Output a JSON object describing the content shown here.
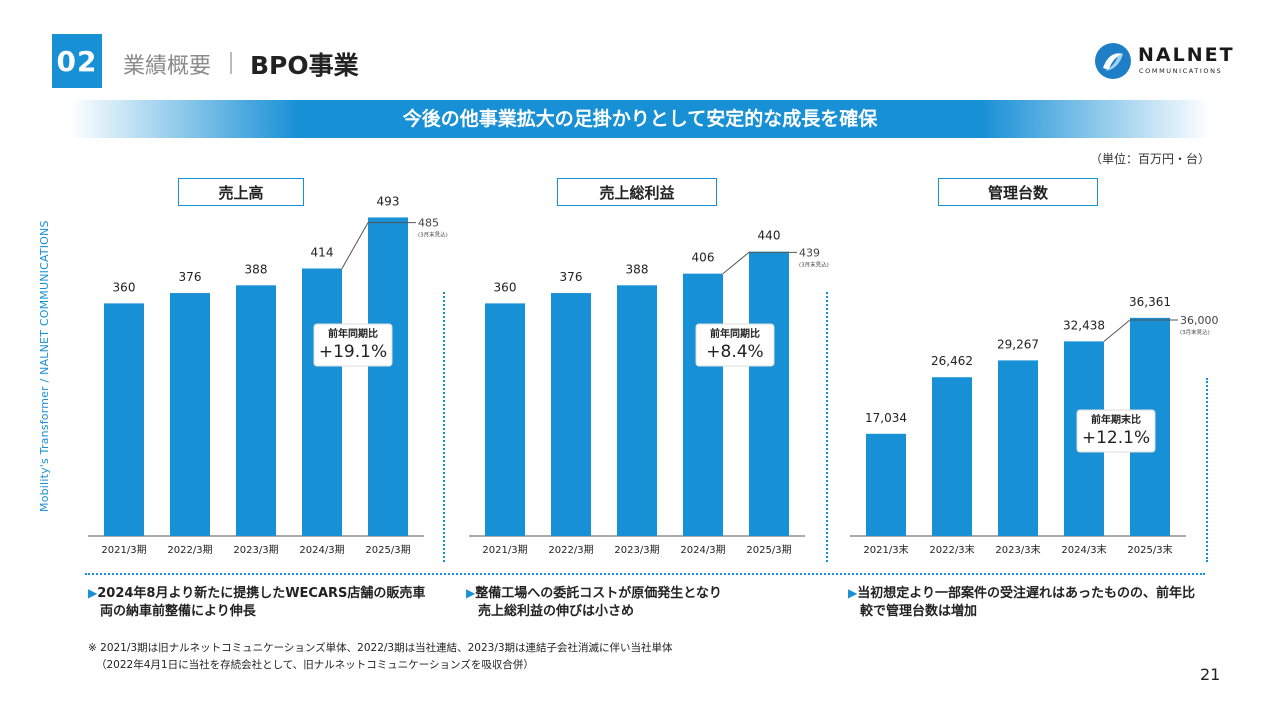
{
  "header": {
    "section_number": "02",
    "category": "業績概要",
    "title": "BPO事業",
    "logo_name": "NALNET",
    "logo_sub": "COMMUNICATIONS"
  },
  "banner": "今後の他事業拡大の足掛かりとして安定的な成長を確保",
  "unit": "（単位：百万円・台）",
  "side_text": "Mobility's Transformer / NALNET COMMUNICATIONS",
  "notes": [
    {
      "line1": "2024年8月より新たに提携したWECARS店舗の販売車",
      "line2": "両の納車前整備により伸長"
    },
    {
      "line1": "整備工場への委託コストが原価発生となり",
      "line2": "売上総利益の伸びは小さめ"
    },
    {
      "line1": "当初想定より一部案件の受注遅れはあったものの、前年比",
      "line2": "較で管理台数は増加"
    }
  ],
  "footnote_line1": "※ 2021/3期は旧ナルネットコミュニケーションズ単体、2022/3期は当社連結、2023/3期は連結子会社消滅に伴い当社単体",
  "footnote_line2": "（2022年4月1日に当社を存続会社として、旧ナルネットコミュニケーションズを吸収合併）",
  "page_number": "21",
  "colors": {
    "accent": "#1890d6",
    "bar": "#1890d6"
  },
  "chart_data": [
    {
      "type": "bar",
      "title": "売上高",
      "categories": [
        "2021/3期",
        "2022/3期",
        "2023/3期",
        "2024/3期",
        "2025/3期"
      ],
      "values": [
        360,
        376,
        388,
        414,
        493
      ],
      "data_labels": [
        "360",
        "376",
        "388",
        "414",
        "493"
      ],
      "forecast": {
        "value": 485,
        "label": "485",
        "note": "(3月末見込)"
      },
      "badge": {
        "label": "前年同期比",
        "value": "+19.1%"
      },
      "ylim": [
        0,
        520
      ]
    },
    {
      "type": "bar",
      "title": "売上総利益",
      "categories": [
        "2021/3期",
        "2022/3期",
        "2023/3期",
        "2024/3期",
        "2025/3期"
      ],
      "values": [
        360,
        376,
        388,
        406,
        440
      ],
      "data_labels": [
        "360",
        "376",
        "388",
        "406",
        "440"
      ],
      "forecast": {
        "value": 439,
        "label": "439",
        "note": "(3月末見込)"
      },
      "badge": {
        "label": "前年同期比",
        "value": "+8.4%"
      },
      "ylim": [
        0,
        520
      ]
    },
    {
      "type": "bar",
      "title": "管理台数",
      "categories": [
        "2021/3末",
        "2022/3末",
        "2023/3末",
        "2024/3末",
        "2025/3末"
      ],
      "values": [
        17034,
        26462,
        29267,
        32438,
        36361
      ],
      "data_labels": [
        "17,034",
        "26,462",
        "29,267",
        "32,438",
        "36,361"
      ],
      "forecast": {
        "value": 36000,
        "label": "36,000",
        "note": "(3月末見込)"
      },
      "badge": {
        "label": "前年期末比",
        "value": "+12.1%"
      },
      "ylim": [
        0,
        56000
      ]
    }
  ]
}
